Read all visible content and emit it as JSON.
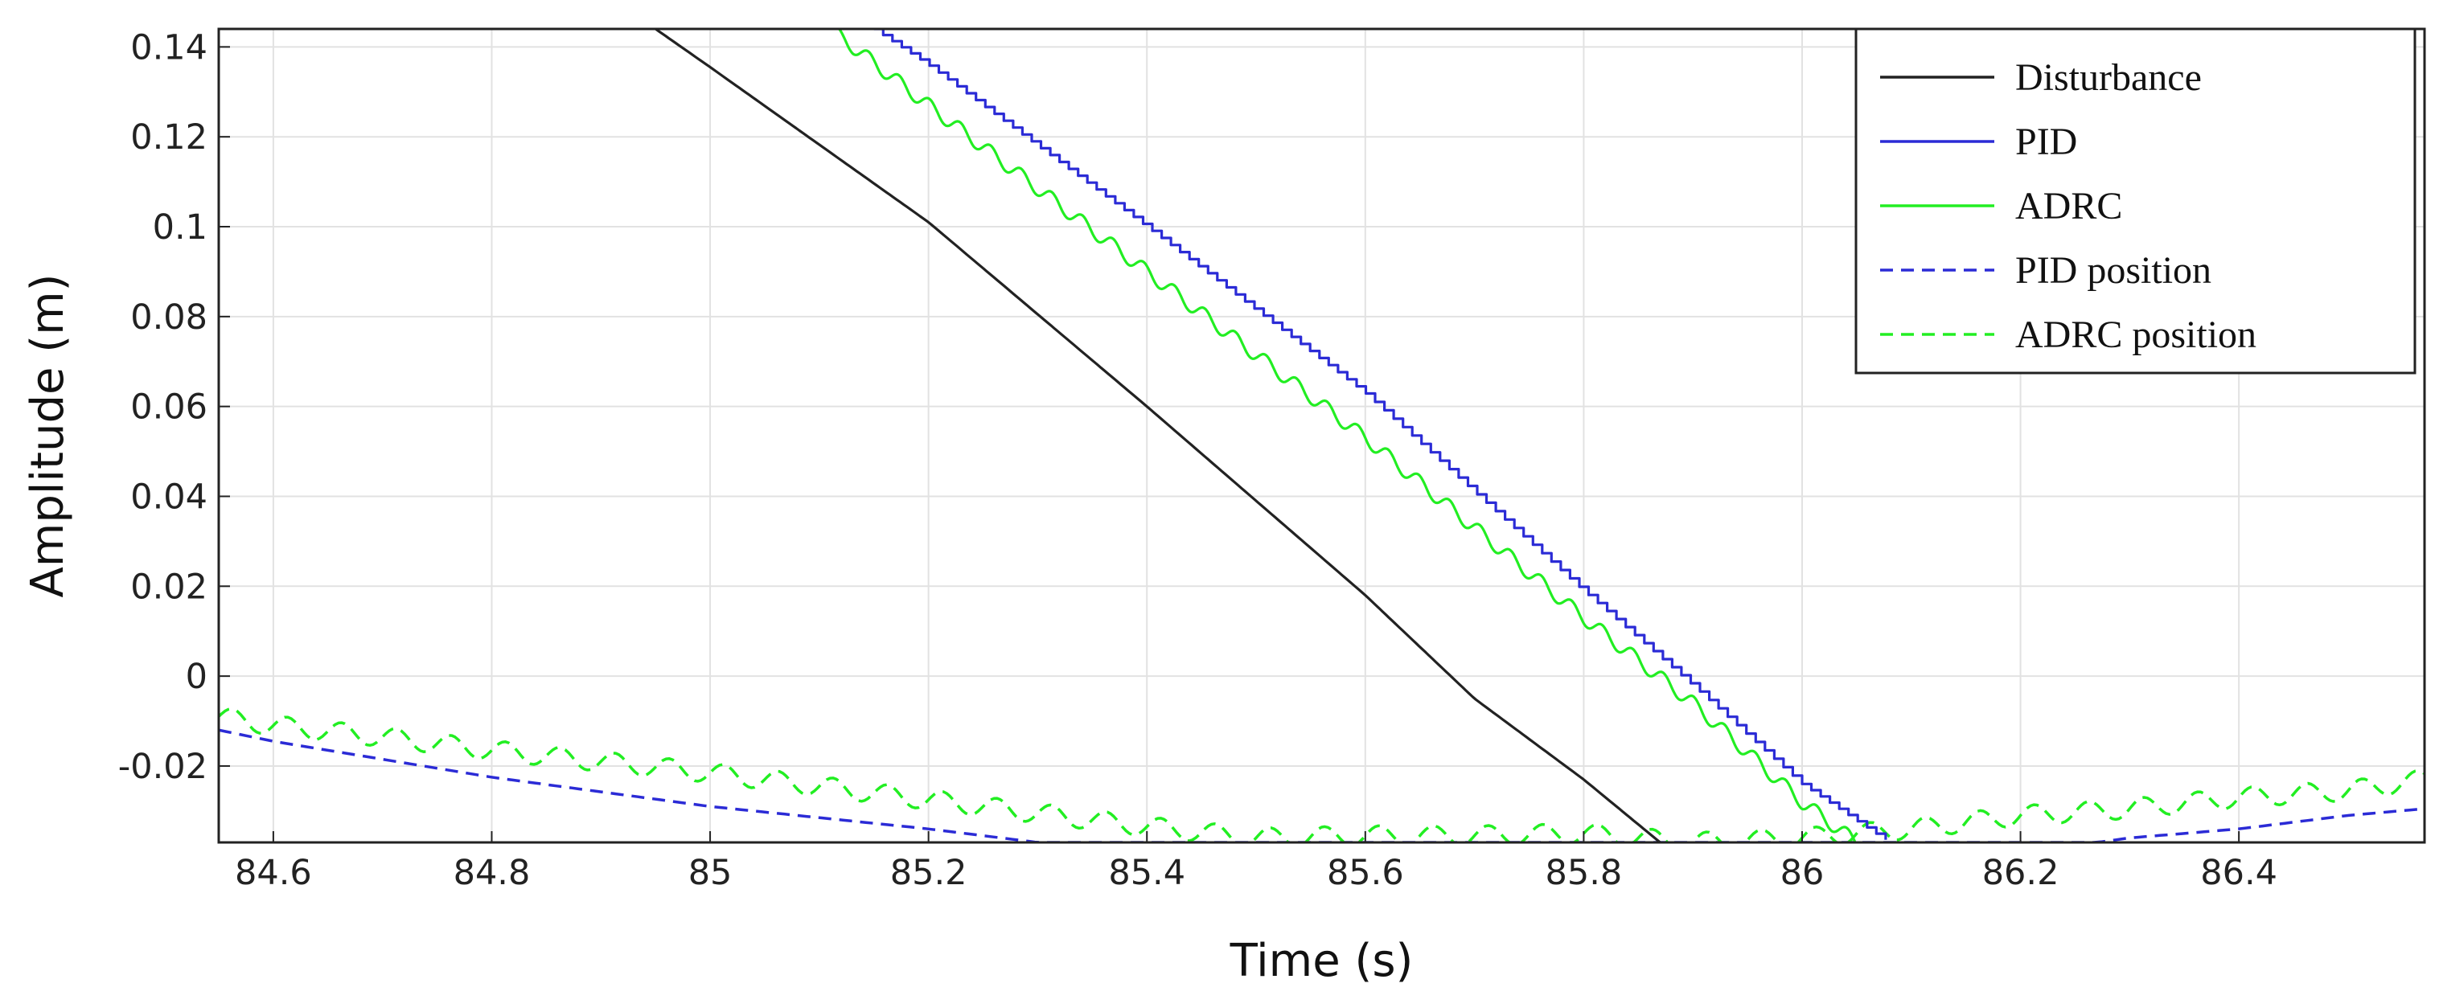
{
  "chart_data": {
    "type": "line",
    "title": "",
    "xlabel": "Time (s)",
    "ylabel": "Amplitude (m)",
    "xlim": [
      84.55,
      86.57
    ],
    "ylim": [
      -0.037,
      0.144
    ],
    "x_ticks": [
      84.6,
      84.8,
      85,
      85.2,
      85.4,
      85.6,
      85.8,
      86,
      86.2,
      86.4
    ],
    "x_tick_labels": [
      "84.6",
      "84.8",
      "85",
      "85.2",
      "85.4",
      "85.6",
      "85.8",
      "86",
      "86.2",
      "86.4"
    ],
    "y_ticks": [
      -0.02,
      0,
      0.02,
      0.04,
      0.06,
      0.08,
      0.1,
      0.12,
      0.14
    ],
    "y_tick_labels": [
      "-0.02",
      "0",
      "0.02",
      "0.04",
      "0.06",
      "0.08",
      "0.1",
      "0.12",
      "0.14"
    ],
    "grid": true,
    "legend_position": "top-right",
    "series": [
      {
        "name": "Disturbance",
        "color": "#222222",
        "dash": "solid",
        "x": [
          84.95,
          85.0,
          85.2,
          85.4,
          85.6,
          85.7,
          85.8,
          85.87
        ],
        "y": [
          0.144,
          0.1355,
          0.101,
          0.06,
          0.018,
          -0.005,
          -0.023,
          -0.037
        ]
      },
      {
        "name": "PID",
        "color": "#2b2bd6",
        "dash": "solid",
        "stair": true,
        "x": [
          85.15,
          85.2,
          85.4,
          85.6,
          85.8,
          85.9,
          86.0,
          86.08
        ],
        "y": [
          0.144,
          0.136,
          0.1,
          0.063,
          0.019,
          -0.002,
          -0.024,
          -0.037
        ]
      },
      {
        "name": "ADRC",
        "color": "#22ee22",
        "dash": "solid",
        "wavy": true,
        "x": [
          85.11,
          85.2,
          85.4,
          85.6,
          85.8,
          85.9,
          86.0,
          86.05
        ],
        "y": [
          0.144,
          0.127,
          0.09,
          0.053,
          0.013,
          -0.006,
          -0.028,
          -0.037
        ]
      },
      {
        "name": "PID position",
        "color": "#2b2bd6",
        "dash": "dashed",
        "x": [
          84.55,
          84.6,
          84.8,
          85.0,
          85.2,
          85.3,
          85.5,
          85.7,
          85.9,
          86.1,
          86.27,
          86.3,
          86.4,
          86.5,
          86.57
        ],
        "y": [
          -0.012,
          -0.0145,
          -0.0225,
          -0.029,
          -0.034,
          -0.037,
          -0.037,
          -0.037,
          -0.037,
          -0.037,
          -0.037,
          -0.036,
          -0.034,
          -0.031,
          -0.0295
        ]
      },
      {
        "name": "ADRC position",
        "color": "#22ee22",
        "dash": "dashed",
        "wavy": true,
        "x": [
          84.55,
          84.6,
          84.7,
          84.8,
          84.9,
          85.0,
          85.1,
          85.2,
          85.3,
          85.4,
          85.5,
          85.6,
          85.7,
          85.8,
          85.9,
          86.0,
          86.1,
          86.2,
          86.3,
          86.4,
          86.5,
          86.57
        ],
        "y": [
          -0.009,
          -0.011,
          -0.0135,
          -0.0165,
          -0.019,
          -0.0215,
          -0.0245,
          -0.0275,
          -0.0305,
          -0.0335,
          -0.036,
          -0.0355,
          -0.0355,
          -0.035,
          -0.037,
          -0.036,
          -0.034,
          -0.031,
          -0.0295,
          -0.027,
          -0.0255,
          -0.023
        ]
      }
    ]
  }
}
